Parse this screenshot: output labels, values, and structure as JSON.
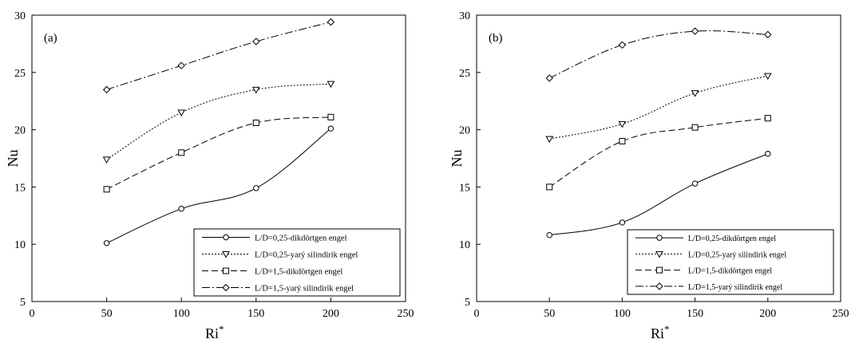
{
  "chart_data": [
    {
      "type": "line",
      "panel_label": "(a)",
      "xlabel": "Ri",
      "xlabel_sup": "*",
      "ylabel": "Nu",
      "xlim": [
        0,
        250
      ],
      "ylim": [
        5,
        30
      ],
      "xticks": [
        "0",
        "50",
        "100",
        "150",
        "200",
        "250"
      ],
      "yticks": [
        "5",
        "10",
        "15",
        "20",
        "25",
        "30"
      ],
      "x": [
        50,
        100,
        150,
        200
      ],
      "legend_position": "bottom-right",
      "series": [
        {
          "name": "L/D=0,25-dikdörtgen engel",
          "values": [
            10.1,
            13.1,
            14.9,
            20.1
          ],
          "marker": "circle",
          "dash": ""
        },
        {
          "name": "L/D=0,25-yarý silindirik engel",
          "values": [
            17.4,
            21.5,
            23.5,
            24.0
          ],
          "marker": "triangle-down",
          "dash": "2,2"
        },
        {
          "name": "L/D=1,5-dikdörtgen engel",
          "values": [
            14.8,
            18.0,
            20.6,
            21.1
          ],
          "marker": "square",
          "dash": "8,4"
        },
        {
          "name": "L/D=1,5-yarý silindirik engel",
          "values": [
            23.5,
            25.6,
            27.7,
            29.4
          ],
          "marker": "diamond",
          "dash": "10,3,2,3"
        }
      ]
    },
    {
      "type": "line",
      "panel_label": "(b)",
      "xlabel": "Ri",
      "xlabel_sup": "*",
      "ylabel": "Nu",
      "xlim": [
        0,
        250
      ],
      "ylim": [
        5,
        30
      ],
      "xticks": [
        "0",
        "50",
        "100",
        "150",
        "200",
        "250"
      ],
      "yticks": [
        "5",
        "10",
        "15",
        "20",
        "25",
        "30"
      ],
      "x": [
        50,
        100,
        150,
        200
      ],
      "legend_position": "bottom-right",
      "series": [
        {
          "name": "L/D=0,25-dikdörtgen engel",
          "values": [
            10.8,
            11.9,
            15.3,
            17.9
          ],
          "marker": "circle",
          "dash": ""
        },
        {
          "name": "L/D=0,25-yarý silindirik engel",
          "values": [
            19.2,
            20.5,
            23.2,
            24.7
          ],
          "marker": "triangle-down",
          "dash": "2,2"
        },
        {
          "name": "L/D=1,5-dikdörtgen engel",
          "values": [
            15.0,
            19.0,
            20.2,
            21.0
          ],
          "marker": "square",
          "dash": "8,4"
        },
        {
          "name": "L/D=1,5-yarý silindirik engel",
          "values": [
            24.5,
            27.4,
            28.6,
            28.3
          ],
          "marker": "diamond",
          "dash": "10,3,2,3"
        }
      ]
    }
  ]
}
